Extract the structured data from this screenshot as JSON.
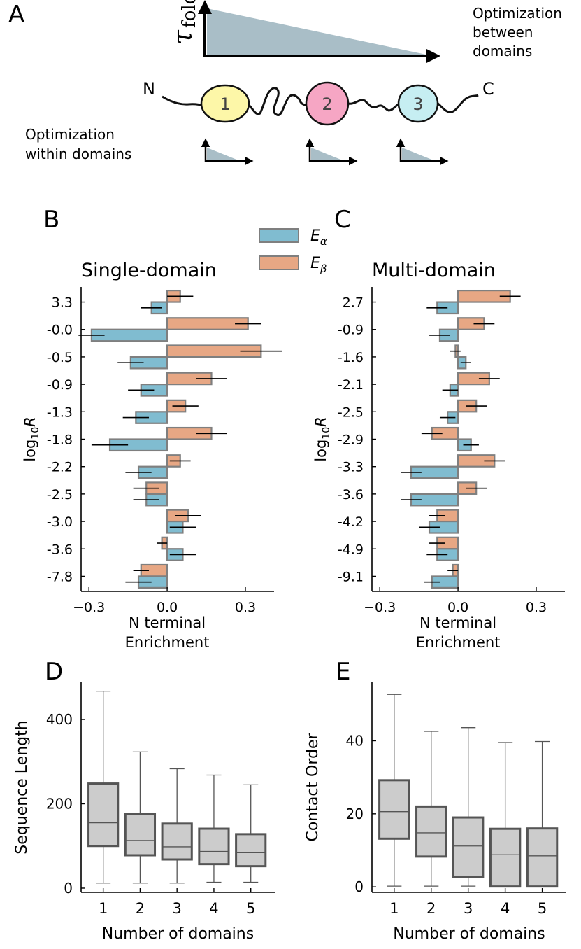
{
  "panel_labels": {
    "a": "A",
    "b": "B",
    "c": "C",
    "d": "D",
    "e": "E"
  },
  "schematic": {
    "y_axis_symbol": "τ",
    "y_axis_subscript": "fold",
    "between_label": [
      "Optimization",
      "between",
      "domains"
    ],
    "within_label": [
      "Optimization",
      "within domains"
    ],
    "n_terminus": "N",
    "c_terminus": "C",
    "domains": [
      {
        "label": "1",
        "color": "#fdf7a8"
      },
      {
        "label": "2",
        "color": "#f6a6c4"
      },
      {
        "label": "3",
        "color": "#c6eef2"
      }
    ],
    "triangle_color": "#a9bec7"
  },
  "legend": {
    "alpha": {
      "base": "E",
      "sub": "α",
      "color": "#80bcd0"
    },
    "beta": {
      "base": "E",
      "sub": "β",
      "color": "#e7a784"
    }
  },
  "chart_data": [
    {
      "id": "B",
      "type": "bar",
      "orientation": "horizontal",
      "title": "Single-domain",
      "ylabel_base": "log",
      "ylabel_sub": "10",
      "ylabel_var": "R",
      "xlabel": [
        "N terminal",
        "Enrichment"
      ],
      "xlim": [
        -0.33,
        0.41
      ],
      "xticks": [
        -0.3,
        0.0,
        0.3
      ],
      "xtick_labels": [
        "−0.3",
        "0.0",
        "0.3"
      ],
      "categories": [
        "3.3",
        "-0.0",
        "-0.5",
        "-0.9",
        "-1.3",
        "-1.8",
        "-2.2",
        "-2.5",
        "-3.0",
        "-3.6",
        "-7.8"
      ],
      "series": [
        {
          "name": "E_beta",
          "values": [
            0.05,
            0.31,
            0.36,
            0.17,
            0.07,
            0.17,
            0.05,
            -0.08,
            0.08,
            -0.02,
            -0.1
          ],
          "errors": [
            0.05,
            0.05,
            0.08,
            0.06,
            0.05,
            0.06,
            0.04,
            0.05,
            0.05,
            0.02,
            0.03
          ]
        },
        {
          "name": "E_alpha",
          "values": [
            -0.06,
            -0.29,
            -0.14,
            -0.1,
            -0.12,
            -0.22,
            -0.11,
            -0.08,
            0.06,
            0.06,
            -0.11
          ],
          "errors": [
            0.04,
            0.05,
            0.05,
            0.05,
            0.05,
            0.07,
            0.05,
            0.05,
            0.05,
            0.05,
            0.05
          ]
        }
      ]
    },
    {
      "id": "C",
      "type": "bar",
      "orientation": "horizontal",
      "title": "Multi-domain",
      "ylabel_base": "log",
      "ylabel_sub": "10",
      "ylabel_var": "R",
      "xlabel": [
        "N terminal",
        "Enrichment"
      ],
      "xlim": [
        -0.33,
        0.41
      ],
      "xticks": [
        -0.3,
        0.0,
        0.3
      ],
      "xtick_labels": [
        "−0.3",
        "0.0",
        "0.3"
      ],
      "categories": [
        "2.7",
        "-0.9",
        "-1.6",
        "-2.1",
        "-2.5",
        "-2.9",
        "-3.3",
        "-3.6",
        "-4.2",
        "-4.9",
        "-9.1"
      ],
      "series": [
        {
          "name": "E_beta",
          "values": [
            0.2,
            0.1,
            -0.01,
            0.12,
            0.07,
            -0.1,
            0.14,
            0.07,
            -0.08,
            -0.08,
            -0.02
          ],
          "errors": [
            0.04,
            0.04,
            0.02,
            0.04,
            0.04,
            0.04,
            0.04,
            0.04,
            0.03,
            0.03,
            0.02
          ]
        },
        {
          "name": "E_alpha",
          "values": [
            -0.08,
            -0.07,
            0.03,
            -0.03,
            -0.04,
            0.05,
            -0.18,
            -0.18,
            -0.11,
            -0.08,
            -0.1
          ],
          "errors": [
            0.04,
            0.04,
            0.02,
            0.03,
            0.03,
            0.03,
            0.04,
            0.04,
            0.04,
            0.04,
            0.03
          ]
        }
      ]
    },
    {
      "id": "D",
      "type": "box",
      "xlabel": "Number of domains",
      "ylabel": "Sequence Length",
      "ylim": [
        -10,
        488
      ],
      "yticks": [
        0,
        200,
        400
      ],
      "ytick_labels": [
        "0",
        "200",
        "400"
      ],
      "categories": [
        "1",
        "2",
        "3",
        "4",
        "5"
      ],
      "boxes": [
        {
          "whisker_low": 12,
          "q1": 100,
          "median": 155,
          "q3": 248,
          "whisker_high": 467
        },
        {
          "whisker_low": 12,
          "q1": 78,
          "median": 113,
          "q3": 176,
          "whisker_high": 323
        },
        {
          "whisker_low": 12,
          "q1": 68,
          "median": 98,
          "q3": 153,
          "whisker_high": 283
        },
        {
          "whisker_low": 14,
          "q1": 57,
          "median": 87,
          "q3": 141,
          "whisker_high": 268
        },
        {
          "whisker_low": 14,
          "q1": 52,
          "median": 84,
          "q3": 128,
          "whisker_high": 245
        }
      ]
    },
    {
      "id": "E",
      "type": "box",
      "xlabel": "Number of domains",
      "ylabel": "Contact Order",
      "ylim": [
        -1.5,
        56
      ],
      "yticks": [
        0,
        20,
        40
      ],
      "ytick_labels": [
        "0",
        "20",
        "40"
      ],
      "categories": [
        "1",
        "2",
        "3",
        "4",
        "5"
      ],
      "boxes": [
        {
          "whisker_low": 0.2,
          "q1": 13.2,
          "median": 20.6,
          "q3": 29.2,
          "whisker_high": 52.7
        },
        {
          "whisker_low": 0.2,
          "q1": 8.3,
          "median": 14.8,
          "q3": 22.0,
          "whisker_high": 42.6
        },
        {
          "whisker_low": 0.2,
          "q1": 2.7,
          "median": 11.2,
          "q3": 19.0,
          "whisker_high": 43.6
        },
        {
          "whisker_low": 0.0,
          "q1": 0.1,
          "median": 8.8,
          "q3": 15.9,
          "whisker_high": 39.5
        },
        {
          "whisker_low": 0.0,
          "q1": 0.1,
          "median": 8.5,
          "q3": 16.0,
          "whisker_high": 39.8
        }
      ]
    }
  ],
  "styles": {
    "box_fill": "#cccccc",
    "box_edge": "#555555",
    "bar_edge": "#7f7f7f"
  }
}
